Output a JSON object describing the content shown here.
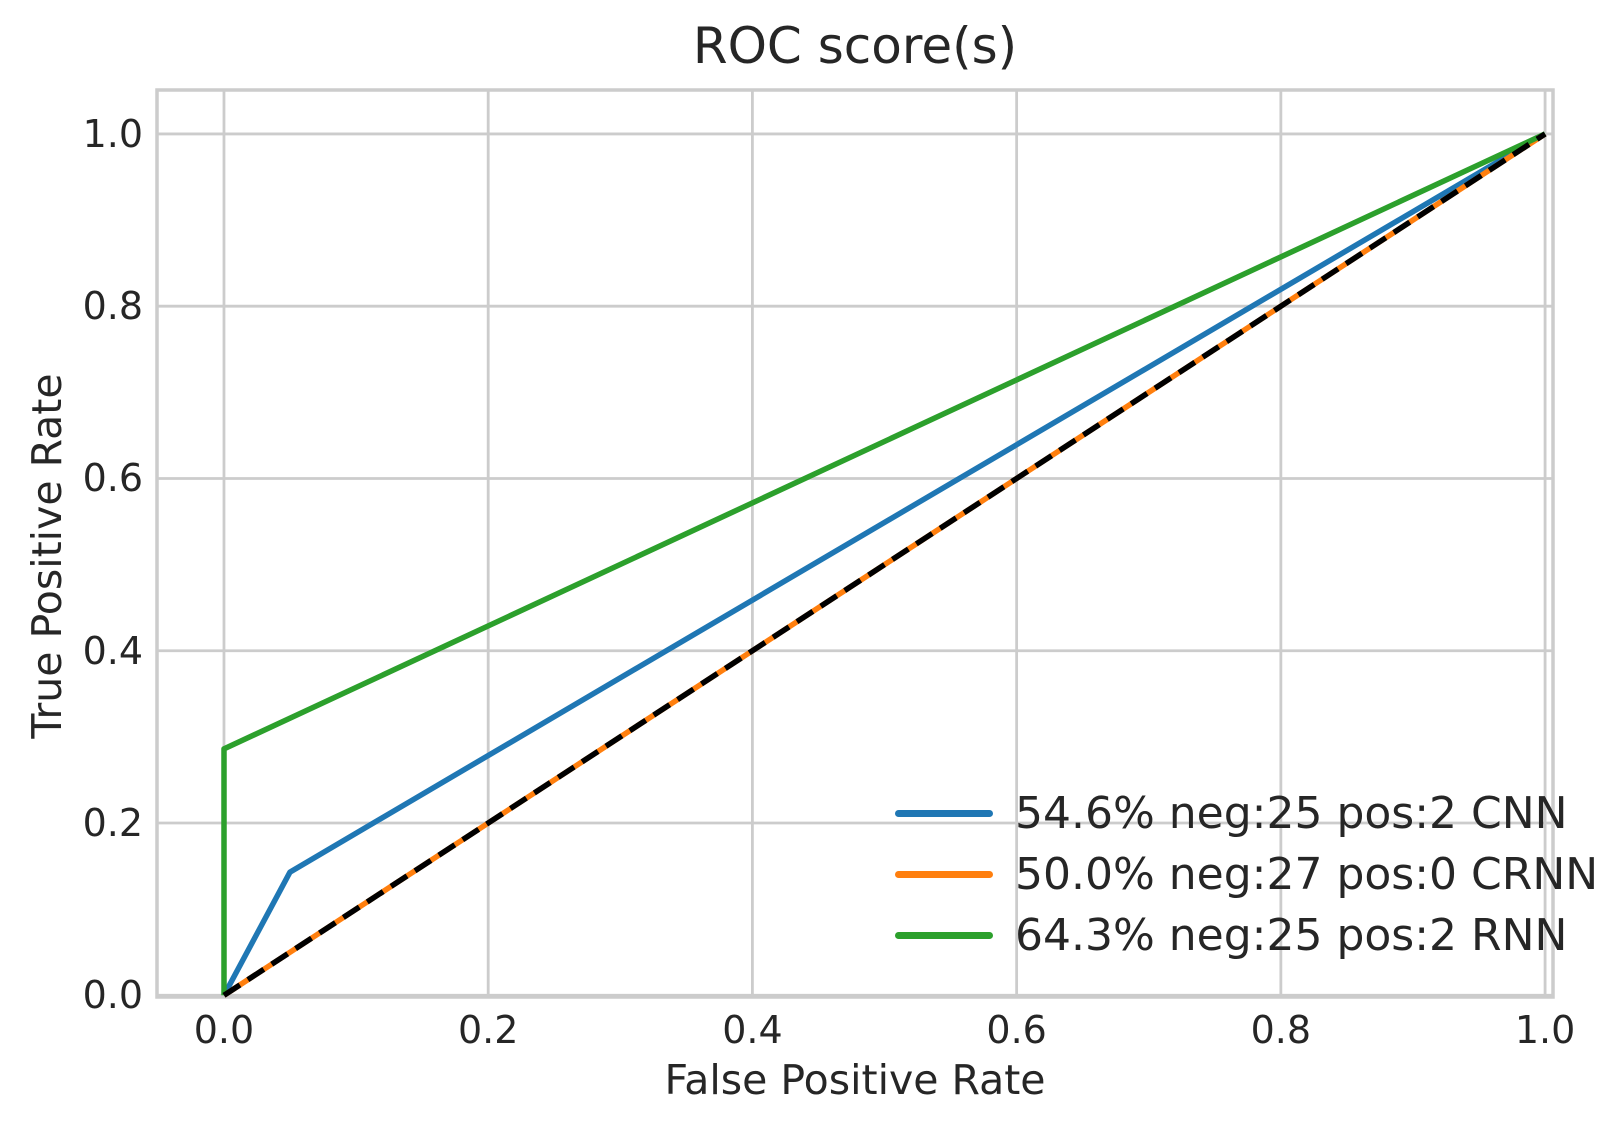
{
  "figure": {
    "title": "ROC score(s)",
    "xlabel": "False Positive Rate",
    "ylabel": "True Positive Rate"
  },
  "chart_data": {
    "type": "line",
    "title": "ROC score(s)",
    "xlabel": "False Positive Rate",
    "ylabel": "True Positive Rate",
    "xlim": [
      -0.0507,
      1.006
    ],
    "ylim": [
      -0.002,
      1.051
    ],
    "xticks": [
      0.0,
      0.2,
      0.4,
      0.6,
      0.8,
      1.0
    ],
    "yticks": [
      0.0,
      0.2,
      0.4,
      0.6,
      0.8,
      1.0
    ],
    "xtick_labels": [
      "0.0",
      "0.2",
      "0.4",
      "0.6",
      "0.8",
      "1.0"
    ],
    "ytick_labels": [
      "0.0",
      "0.2",
      "0.4",
      "0.6",
      "0.8",
      "1.0"
    ],
    "grid": true,
    "legend_position": "lower right",
    "legend_frame": false,
    "series": [
      {
        "label": "54.6% neg:25 pos:2 CNN",
        "model": "CNN",
        "auc_percent": 54.6,
        "neg": 25,
        "pos": 2,
        "color": "#1f77b4",
        "line_style": "solid",
        "points": [
          [
            0.0,
            0.0
          ],
          [
            0.05,
            0.143
          ],
          [
            1.0,
            1.0
          ]
        ]
      },
      {
        "label": "50.0% neg:27 pos:0 CRNN",
        "model": "CRNN",
        "auc_percent": 50.0,
        "neg": 27,
        "pos": 0,
        "color": "#ff7f0e",
        "line_style": "solid",
        "points": [
          [
            0.0,
            0.0
          ],
          [
            1.0,
            1.0
          ]
        ]
      },
      {
        "label": "64.3% neg:25 pos:2 RNN",
        "model": "RNN",
        "auc_percent": 64.3,
        "neg": 25,
        "pos": 2,
        "color": "#2ca02c",
        "line_style": "solid",
        "points": [
          [
            0.0,
            0.0
          ],
          [
            0.0,
            0.286
          ],
          [
            1.0,
            1.0
          ]
        ]
      }
    ],
    "reference_line": {
      "color": "#000000",
      "line_style": "dashed",
      "points": [
        [
          0.0,
          0.0
        ],
        [
          1.0,
          1.0
        ]
      ]
    },
    "colors": {
      "grid": "#cccccc",
      "axes_edge": "#cccccc",
      "text": "#262626",
      "background": "#ffffff"
    }
  }
}
